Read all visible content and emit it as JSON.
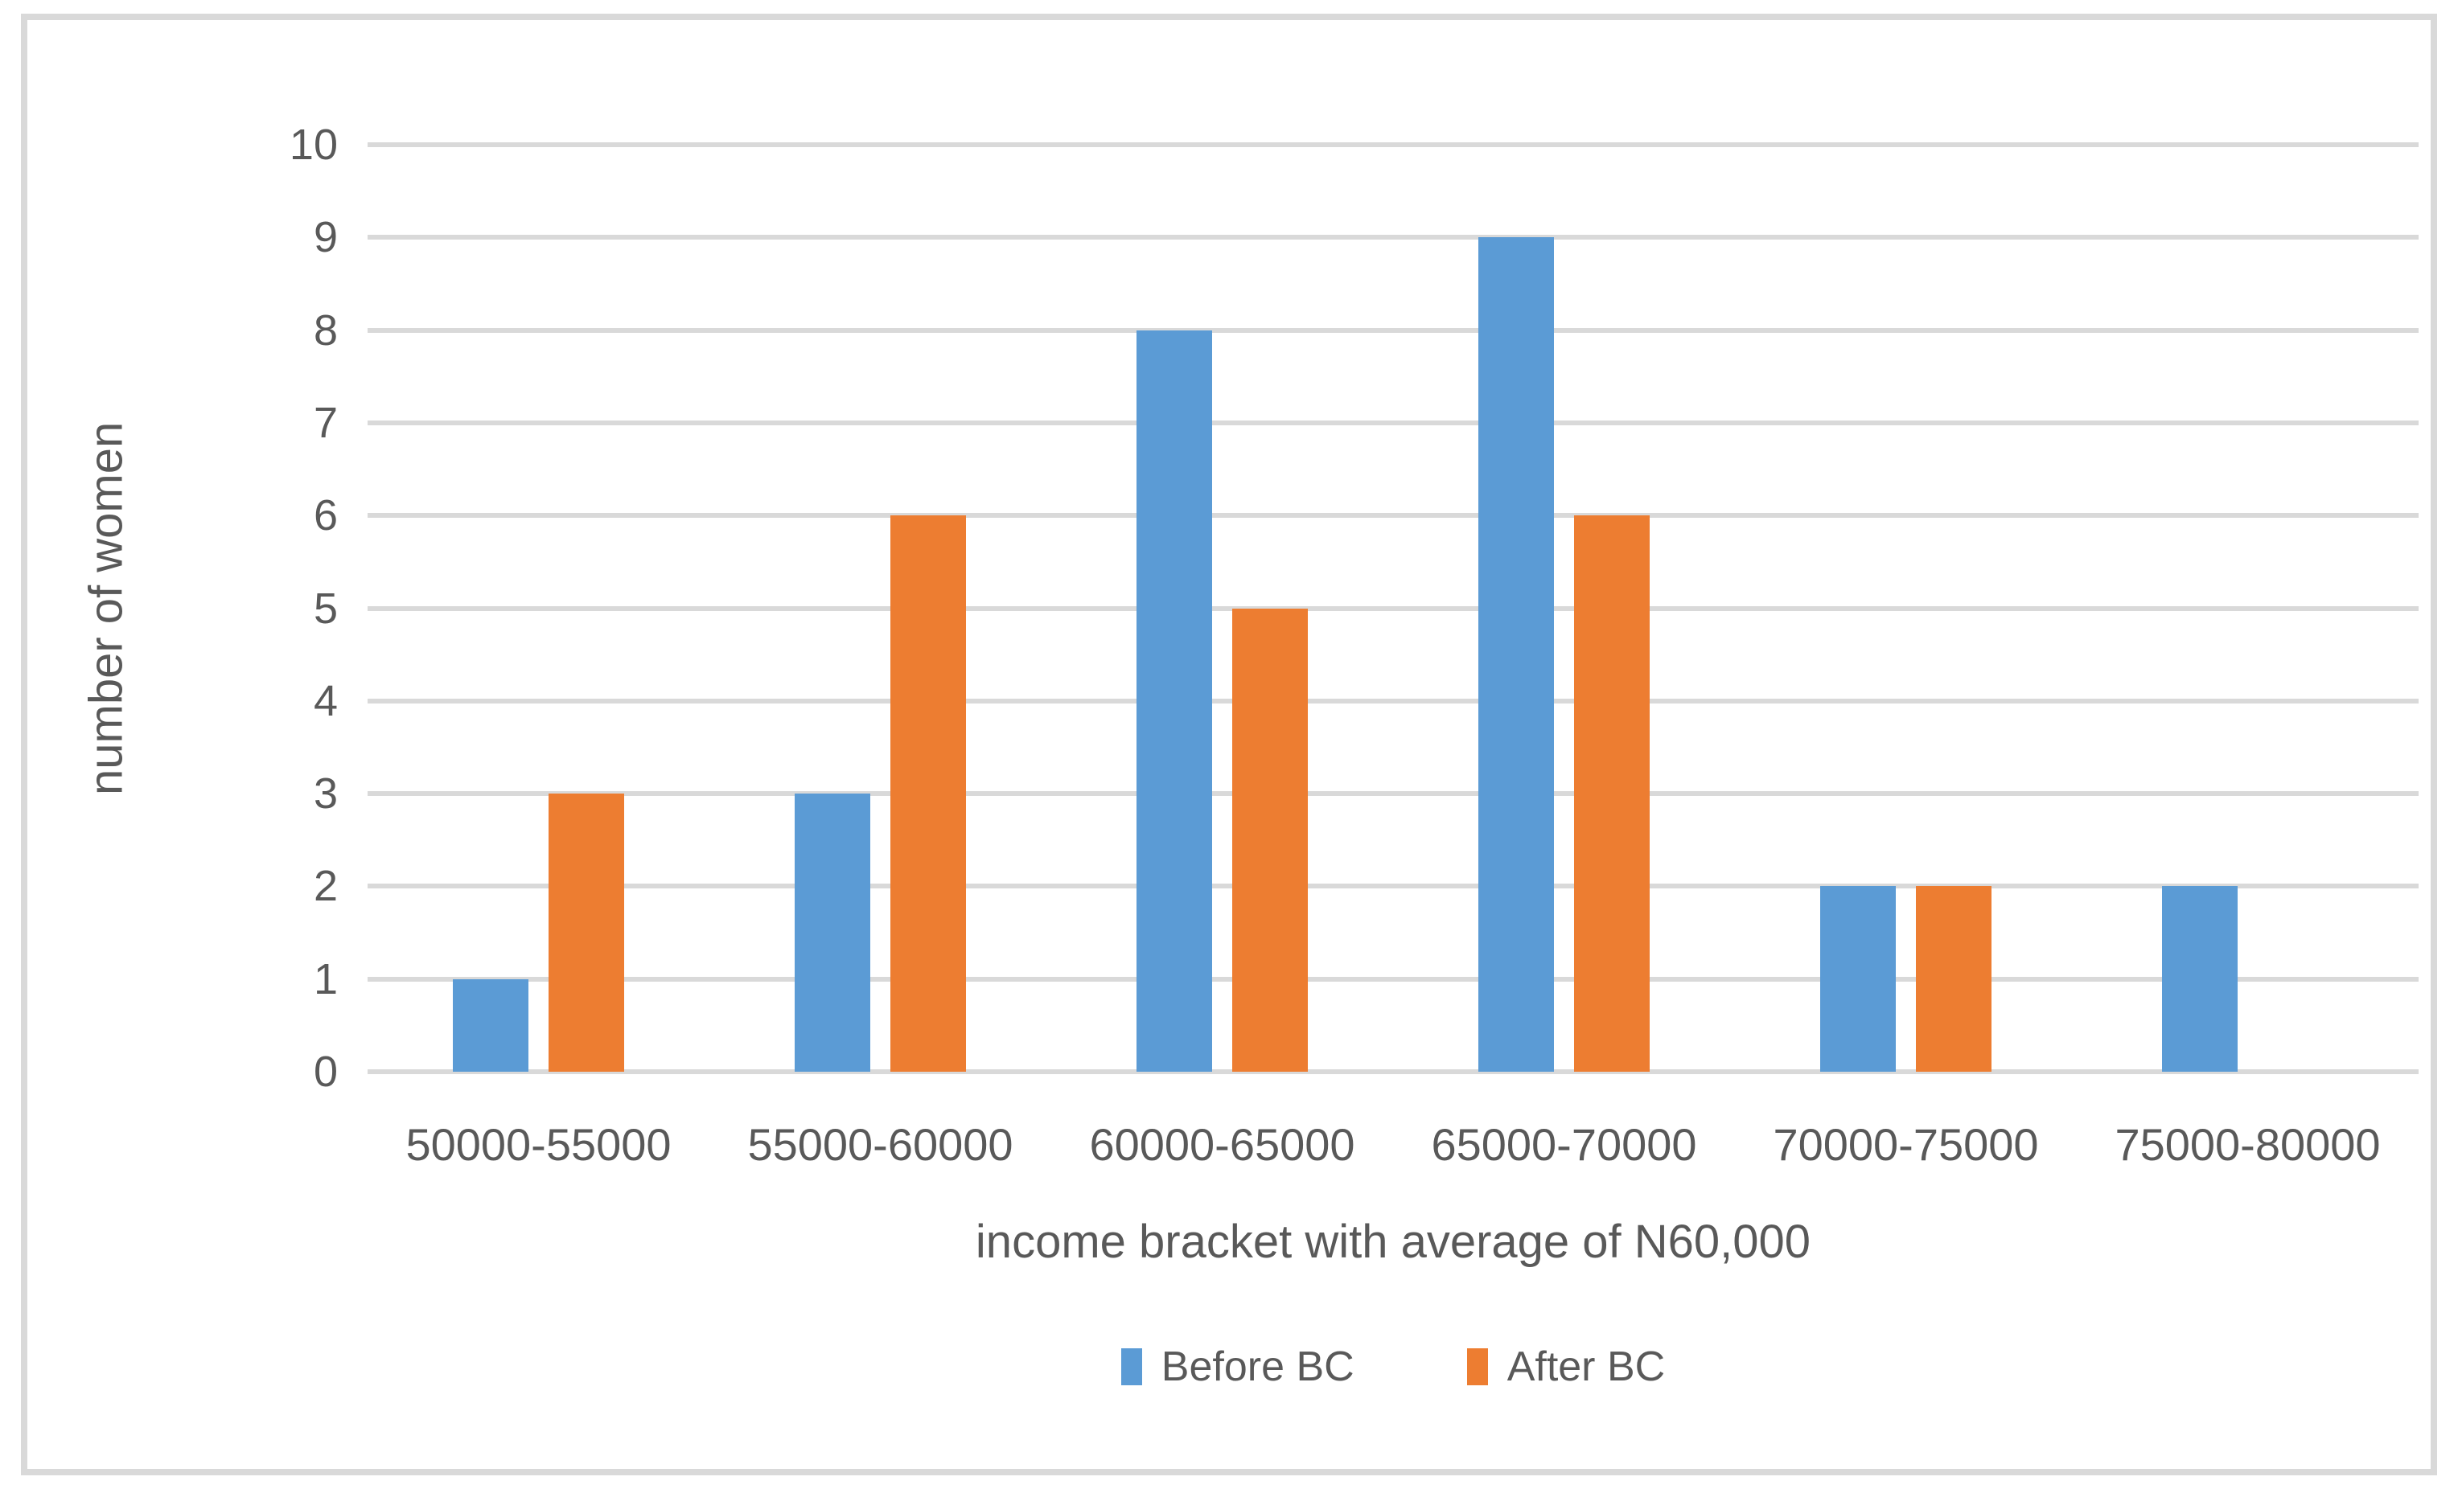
{
  "chart_data": {
    "type": "bar",
    "title": "",
    "categories": [
      "50000-55000",
      "55000-60000",
      "60000-65000",
      "65000-70000",
      "70000-75000",
      "75000-80000"
    ],
    "series": [
      {
        "name": "Before BC",
        "color": "#5B9BD5",
        "values": [
          1,
          3,
          8,
          9,
          2,
          2
        ]
      },
      {
        "name": "After BC",
        "color": "#ED7D31",
        "values": [
          3,
          6,
          5,
          6,
          2,
          0
        ]
      }
    ],
    "xlabel": "income bracket with average of N60,000",
    "ylabel": "number of women",
    "ylim": [
      0,
      10
    ],
    "yticks": [
      0,
      1,
      2,
      3,
      4,
      5,
      6,
      7,
      8,
      9,
      10
    ],
    "grid": "horizontal",
    "legend_position": "bottom"
  },
  "style": {
    "background": "#FFFFFF",
    "border_color": "#D9D9D9",
    "grid_color": "#D9D9D9",
    "text_color": "#595959"
  }
}
